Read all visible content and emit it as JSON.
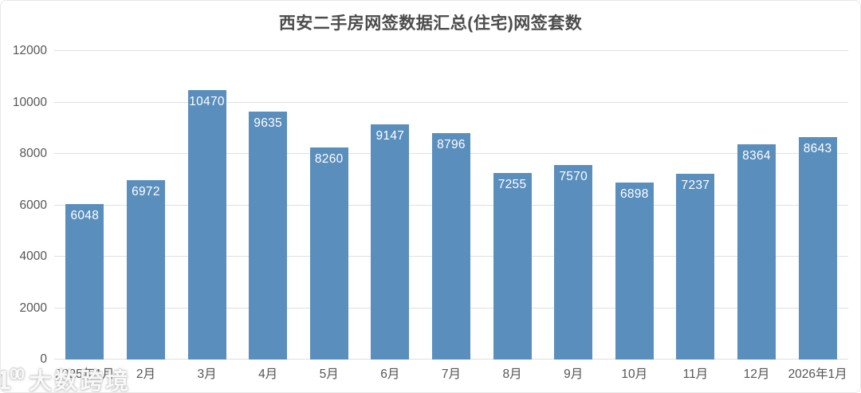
{
  "title": "西安二手房网签数据汇总(住宅)网签套数",
  "watermark": {
    "logo_main": "1",
    "logo_sup": "00",
    "text": "大数跨境"
  },
  "chart_data": {
    "type": "bar",
    "title": "西安二手房网签数据汇总(住宅)网签套数",
    "categories": [
      "2025年1月",
      "2月",
      "3月",
      "4月",
      "5月",
      "6月",
      "7月",
      "8月",
      "9月",
      "10月",
      "11月",
      "12月",
      "2026年1月"
    ],
    "values": [
      6048,
      6972,
      10470,
      9635,
      8260,
      9147,
      8796,
      7255,
      7570,
      6898,
      7237,
      8364,
      8643
    ],
    "xlabel": "",
    "ylabel": "",
    "ylim": [
      0,
      12000
    ],
    "yticks": [
      0,
      2000,
      4000,
      6000,
      8000,
      10000,
      12000
    ],
    "grid": true,
    "legend": null,
    "bar_color": "#5a8ebd",
    "value_label_color": "#ffffff",
    "axis_label_color": "#565656",
    "gridline_color": "#e0e0e0",
    "title_color": "#4c4c4c"
  }
}
